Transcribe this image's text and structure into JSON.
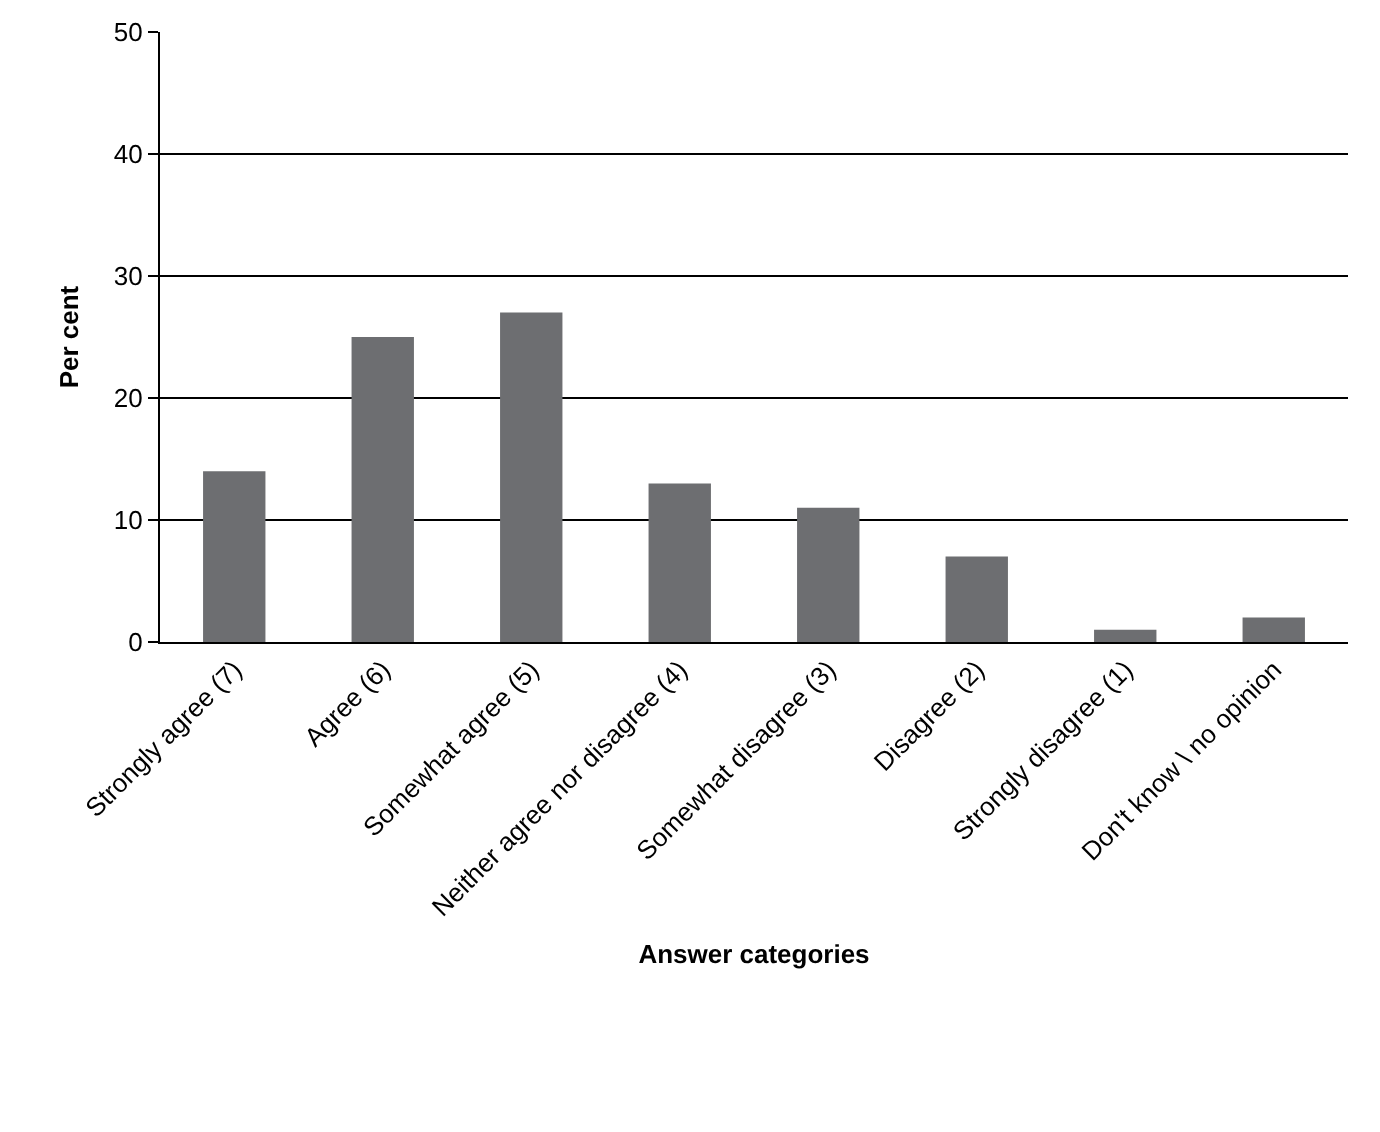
{
  "chart_data": {
    "type": "bar",
    "xlabel": "Answer categories",
    "ylabel": "Per cent",
    "categories": [
      "Strongly agree (7)",
      "Agree (6)",
      "Somewhat agree (5)",
      "Neither agree nor disagree (4)",
      "Somewhat disagree (3)",
      "Disagree (2)",
      "Strongly disagree (1)",
      "Don't know \\ no opinion"
    ],
    "values": [
      14,
      25,
      27,
      13,
      11,
      7,
      1,
      2
    ],
    "color": "#6d6e71",
    "ylim": [
      0,
      50
    ],
    "yticks": [
      0,
      10,
      20,
      30,
      40,
      50
    ],
    "grid": "y",
    "legend": false
  }
}
